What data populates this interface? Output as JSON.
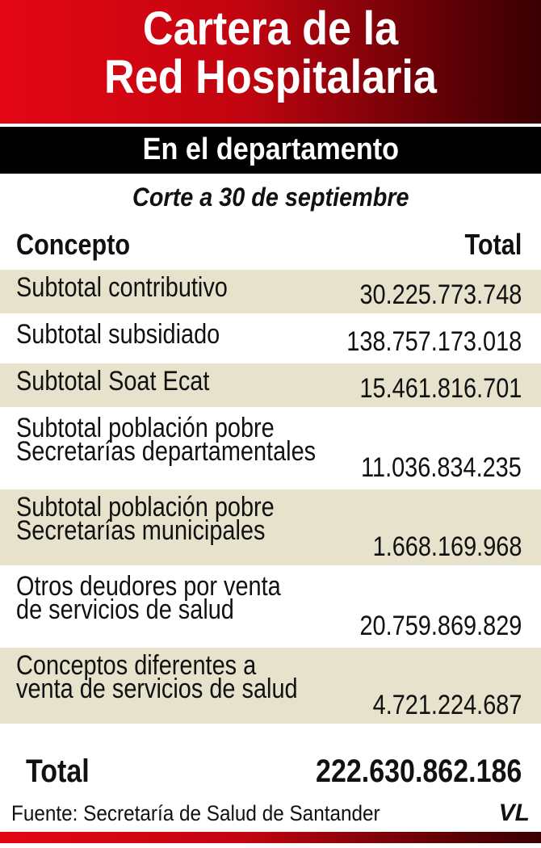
{
  "header": {
    "title_lines": [
      "Cartera de la",
      "Red Hospitalaria"
    ],
    "subtitle": "En el departamento",
    "note": "Corte a 30 de septiembre"
  },
  "table": {
    "columns": [
      "Concepto",
      "Total"
    ],
    "rows": [
      [
        [
          "Subtotal contributivo"
        ],
        "30.225.773.748"
      ],
      [
        [
          "Subtotal subsidiado"
        ],
        "138.757.173.018"
      ],
      [
        [
          "Subtotal Soat Ecat"
        ],
        "15.461.816.701"
      ],
      [
        [
          "Subtotal población pobre",
          "Secretarías departamentales"
        ],
        "11.036.834.235"
      ],
      [
        [
          "Subtotal población pobre",
          "Secretarías municipales"
        ],
        "1.668.169.968"
      ],
      [
        [
          "Otros deudores por venta",
          "de servicios de salud"
        ],
        "20.759.869.829"
      ],
      [
        [
          "Conceptos diferentes a",
          "venta de servicios de salud"
        ],
        "4.721.224.687"
      ]
    ],
    "total": [
      "Total",
      "222.630.862.186"
    ]
  },
  "footer": {
    "source": "Fuente: Secretaría de Salud de Santander",
    "logo": "VL"
  }
}
